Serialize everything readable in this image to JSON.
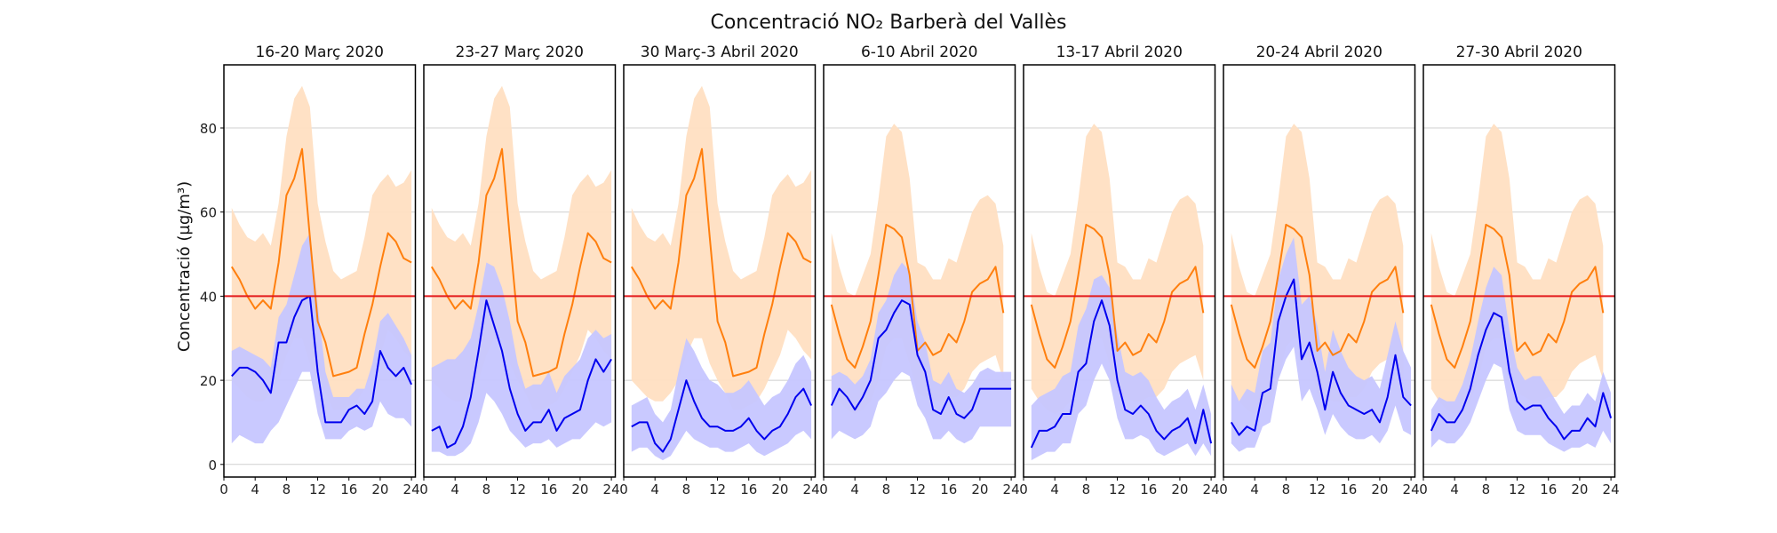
{
  "chart_data": {
    "type": "line",
    "title": "Concentració NO₂ Barberà del Vallès",
    "ylabel": "Concentració (µg/m³)",
    "xlabel": "",
    "x": [
      1,
      2,
      3,
      4,
      5,
      6,
      7,
      8,
      9,
      10,
      11,
      12,
      13,
      14,
      15,
      16,
      17,
      18,
      19,
      20,
      21,
      22,
      23,
      24
    ],
    "xticks": [
      0,
      4,
      8,
      12,
      16,
      20,
      24
    ],
    "yticks": [
      0,
      20,
      40,
      60,
      80
    ],
    "xlim": [
      0,
      24.5
    ],
    "ylim": [
      -3,
      95
    ],
    "grid": "horizontal",
    "limit_line": 40,
    "colors": {
      "reference_line": "#ff7f0e",
      "reference_band": "#ffdfc2",
      "current_line": "#0000ee",
      "current_band": "#c6c6ff",
      "limit": "#e31a1c"
    },
    "panels": [
      {
        "title": "16-20 Març 2020",
        "reference": [
          47,
          44,
          40,
          37,
          39,
          37,
          48,
          64,
          68,
          75,
          54,
          34,
          29,
          21,
          21.5,
          22,
          23,
          31,
          38,
          47,
          55,
          53,
          49,
          48
        ],
        "reference_low": [
          20,
          18,
          16,
          15,
          15,
          17,
          20,
          26,
          30,
          30,
          24,
          20,
          17,
          13,
          13,
          14,
          15,
          18,
          22,
          26,
          32,
          30,
          27,
          25
        ],
        "reference_high": [
          61,
          57,
          54,
          53,
          55,
          52,
          62,
          78,
          87,
          90,
          85,
          62,
          53,
          46,
          44,
          45,
          46,
          54,
          64,
          67,
          69,
          66,
          67,
          70
        ],
        "current": [
          21,
          23,
          23,
          22,
          20,
          17,
          29,
          29,
          35,
          39,
          40,
          22,
          10,
          10,
          10,
          13,
          14,
          12,
          15,
          27,
          23,
          21,
          23,
          19
        ],
        "current_low": [
          5,
          7,
          6,
          5,
          5,
          8,
          10,
          14,
          18,
          22,
          22,
          12,
          6,
          6,
          6,
          8,
          9,
          8,
          9,
          15,
          12,
          11,
          11,
          9
        ],
        "current_high": [
          27,
          28,
          27,
          26,
          25,
          23,
          35,
          38,
          45,
          52,
          55,
          38,
          22,
          16,
          16,
          16,
          18,
          18,
          24,
          34,
          36,
          33,
          30,
          26
        ]
      },
      {
        "title": "23-27 Març 2020",
        "reference": [
          47,
          44,
          40,
          37,
          39,
          37,
          48,
          64,
          68,
          75,
          54,
          34,
          29,
          21,
          21.5,
          22,
          23,
          31,
          38,
          47,
          55,
          53,
          49,
          48
        ],
        "reference_low": [
          20,
          18,
          16,
          15,
          15,
          17,
          20,
          26,
          30,
          30,
          24,
          20,
          17,
          13,
          13,
          14,
          15,
          18,
          22,
          26,
          32,
          30,
          27,
          25
        ],
        "reference_high": [
          61,
          57,
          54,
          53,
          55,
          52,
          62,
          78,
          87,
          90,
          85,
          62,
          53,
          46,
          44,
          45,
          46,
          54,
          64,
          67,
          69,
          66,
          67,
          70
        ],
        "current": [
          8,
          9,
          4,
          5,
          9,
          16,
          27,
          39,
          33,
          27,
          18,
          12,
          8,
          10,
          10,
          13,
          8,
          11,
          12,
          13,
          20,
          25,
          22,
          25
        ],
        "current_low": [
          3,
          3,
          2,
          2,
          3,
          5,
          10,
          17,
          15,
          12,
          8,
          6,
          4,
          5,
          5,
          6,
          4,
          5,
          6,
          6,
          8,
          10,
          9,
          10
        ],
        "current_high": [
          23,
          24,
          25,
          25,
          27,
          30,
          38,
          48,
          47,
          42,
          34,
          24,
          18,
          19,
          19,
          22,
          17,
          21,
          23,
          25,
          30,
          32,
          30,
          31
        ]
      },
      {
        "title": "30 Març-3 Abril 2020",
        "reference": [
          47,
          44,
          40,
          37,
          39,
          37,
          48,
          64,
          68,
          75,
          54,
          34,
          29,
          21,
          21.5,
          22,
          23,
          31,
          38,
          47,
          55,
          53,
          49,
          48
        ],
        "reference_low": [
          20,
          18,
          16,
          15,
          15,
          17,
          20,
          26,
          30,
          30,
          24,
          20,
          17,
          13,
          13,
          14,
          15,
          18,
          22,
          26,
          32,
          30,
          27,
          25
        ],
        "reference_high": [
          61,
          57,
          54,
          53,
          55,
          52,
          62,
          78,
          87,
          90,
          85,
          62,
          53,
          46,
          44,
          45,
          46,
          54,
          64,
          67,
          69,
          66,
          67,
          70
        ],
        "current": [
          9,
          10,
          10,
          5,
          3,
          6,
          13,
          20,
          15,
          11,
          9,
          9,
          8,
          8,
          9,
          11,
          8,
          6,
          8,
          9,
          12,
          16,
          18,
          14
        ],
        "current_low": [
          3,
          4,
          4,
          2,
          1,
          2,
          5,
          8,
          6,
          5,
          4,
          4,
          3,
          3,
          4,
          5,
          3,
          2,
          3,
          4,
          5,
          7,
          8,
          6
        ],
        "current_high": [
          14,
          15,
          16,
          12,
          10,
          13,
          22,
          30,
          27,
          23,
          20,
          19,
          17,
          17,
          18,
          20,
          17,
          14,
          16,
          17,
          20,
          24,
          26,
          22
        ]
      },
      {
        "title": "6-10 Abril 2020",
        "reference": [
          38,
          31,
          25,
          23,
          28,
          34,
          45,
          57,
          56,
          54,
          45,
          27,
          29,
          26,
          27,
          31,
          29,
          34,
          41,
          43,
          44,
          47,
          36,
          null
        ],
        "reference_low": [
          18,
          15,
          13,
          12,
          13,
          15,
          20,
          28,
          30,
          30,
          24,
          17,
          16,
          15,
          15,
          16,
          16,
          18,
          22,
          24,
          25,
          26,
          20,
          null
        ],
        "reference_high": [
          55,
          47,
          41,
          40,
          45,
          50,
          63,
          78,
          81,
          79,
          68,
          48,
          47,
          44,
          44,
          49,
          48,
          54,
          60,
          63,
          64,
          62,
          52,
          null
        ],
        "current": [
          14,
          18,
          16,
          13,
          16,
          20,
          30,
          32,
          36,
          39,
          38,
          26,
          22,
          13,
          12,
          16,
          12,
          11,
          13,
          18,
          18,
          18,
          18,
          18
        ],
        "current_low": [
          6,
          8,
          7,
          6,
          7,
          9,
          15,
          17,
          20,
          22,
          21,
          14,
          11,
          6,
          6,
          8,
          6,
          5,
          6,
          9,
          9,
          9,
          9,
          9
        ],
        "current_high": [
          21,
          22,
          21,
          19,
          21,
          25,
          36,
          39,
          45,
          48,
          46,
          34,
          29,
          20,
          19,
          22,
          18,
          17,
          19,
          22,
          23,
          22,
          22,
          22
        ]
      },
      {
        "title": "13-17 Abril 2020",
        "reference": [
          38,
          31,
          25,
          23,
          28,
          34,
          45,
          57,
          56,
          54,
          45,
          27,
          29,
          26,
          27,
          31,
          29,
          34,
          41,
          43,
          44,
          47,
          36,
          null
        ],
        "reference_low": [
          18,
          15,
          13,
          12,
          13,
          15,
          20,
          28,
          30,
          30,
          24,
          17,
          16,
          15,
          15,
          16,
          16,
          18,
          22,
          24,
          25,
          26,
          20,
          null
        ],
        "reference_high": [
          55,
          47,
          41,
          40,
          45,
          50,
          63,
          78,
          81,
          79,
          68,
          48,
          47,
          44,
          44,
          49,
          48,
          54,
          60,
          63,
          64,
          62,
          52,
          null
        ],
        "current": [
          4,
          8,
          8,
          9,
          12,
          12,
          22,
          24,
          34,
          39,
          33,
          20,
          13,
          12,
          14,
          12,
          8,
          6,
          8,
          9,
          11,
          5,
          13,
          5
        ],
        "current_low": [
          1,
          2,
          3,
          3,
          5,
          5,
          12,
          14,
          20,
          24,
          20,
          11,
          6,
          6,
          7,
          6,
          3,
          2,
          3,
          4,
          5,
          2,
          5,
          2
        ],
        "current_high": [
          14,
          16,
          17,
          18,
          21,
          22,
          33,
          37,
          44,
          45,
          42,
          31,
          22,
          21,
          22,
          20,
          16,
          13,
          15,
          16,
          18,
          13,
          19,
          12
        ]
      },
      {
        "title": "20-24 Abril 2020",
        "reference": [
          38,
          31,
          25,
          23,
          28,
          34,
          45,
          57,
          56,
          54,
          45,
          27,
          29,
          26,
          27,
          31,
          29,
          34,
          41,
          43,
          44,
          47,
          36,
          null
        ],
        "reference_low": [
          18,
          15,
          13,
          12,
          13,
          15,
          20,
          28,
          30,
          30,
          24,
          17,
          16,
          15,
          15,
          16,
          16,
          18,
          22,
          24,
          25,
          26,
          20,
          null
        ],
        "reference_high": [
          55,
          47,
          41,
          40,
          45,
          50,
          63,
          78,
          81,
          79,
          68,
          48,
          47,
          44,
          44,
          49,
          48,
          54,
          60,
          63,
          64,
          62,
          52,
          null
        ],
        "current": [
          10,
          7,
          9,
          8,
          17,
          18,
          34,
          40,
          44,
          25,
          29,
          22,
          13,
          22,
          17,
          14,
          13,
          12,
          13,
          10,
          16,
          26,
          16,
          14
        ],
        "current_low": [
          5,
          3,
          4,
          4,
          9,
          10,
          20,
          25,
          28,
          15,
          18,
          13,
          7,
          12,
          9,
          7,
          6,
          6,
          7,
          5,
          8,
          14,
          8,
          7
        ],
        "current_high": [
          19,
          15,
          18,
          17,
          27,
          29,
          44,
          50,
          54,
          38,
          40,
          33,
          22,
          32,
          27,
          23,
          21,
          20,
          21,
          18,
          26,
          34,
          27,
          23
        ]
      },
      {
        "title": "27-30 Abril 2020",
        "reference": [
          38,
          31,
          25,
          23,
          28,
          34,
          45,
          57,
          56,
          54,
          45,
          27,
          29,
          26,
          27,
          31,
          29,
          34,
          41,
          43,
          44,
          47,
          36,
          null
        ],
        "reference_low": [
          18,
          15,
          13,
          12,
          13,
          15,
          20,
          28,
          30,
          30,
          24,
          17,
          16,
          15,
          15,
          16,
          16,
          18,
          22,
          24,
          25,
          26,
          20,
          null
        ],
        "reference_high": [
          55,
          47,
          41,
          40,
          45,
          50,
          63,
          78,
          81,
          79,
          68,
          48,
          47,
          44,
          44,
          49,
          48,
          54,
          60,
          63,
          64,
          62,
          52,
          null
        ],
        "current": [
          8,
          12,
          10,
          10,
          13,
          18,
          26,
          32,
          36,
          35,
          22,
          15,
          13,
          14,
          14,
          11,
          9,
          6,
          8,
          8,
          11,
          9,
          17,
          11
        ],
        "current_low": [
          4,
          6,
          5,
          5,
          7,
          10,
          15,
          20,
          24,
          23,
          13,
          8,
          7,
          7,
          7,
          5,
          4,
          3,
          4,
          4,
          5,
          4,
          8,
          5
        ],
        "current_high": [
          13,
          16,
          15,
          15,
          19,
          25,
          34,
          42,
          47,
          45,
          32,
          23,
          20,
          21,
          21,
          18,
          15,
          12,
          14,
          14,
          17,
          15,
          22,
          17
        ]
      }
    ]
  }
}
